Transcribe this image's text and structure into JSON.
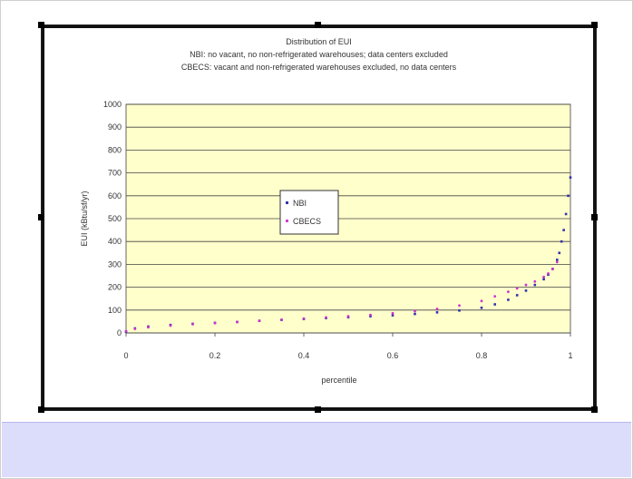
{
  "chart_data": {
    "type": "scatter",
    "title": "Distribution of EUI",
    "subtitle_lines": [
      "NBI: no vacant, no non-refrigerated warehouses; data centers excluded",
      "CBECS: vacant and non-refrigerated warehouses excluded, no data centers"
    ],
    "xlabel": "percentile",
    "ylabel": "EUI (kBtu/sf/yr)",
    "xlim": [
      0,
      1
    ],
    "ylim": [
      0,
      1000
    ],
    "x_ticks": [
      "0",
      "0.2",
      "0.4",
      "0.6",
      "0.8",
      "1"
    ],
    "y_ticks": [
      "0",
      "100",
      "200",
      "300",
      "400",
      "500",
      "600",
      "700",
      "800",
      "900",
      "1000"
    ],
    "grid": "horizontal",
    "plot_background": "#ffffcc",
    "legend_position": "center-left",
    "series": [
      {
        "name": "NBI",
        "color": "#3333aa",
        "x": [
          0.0,
          0.02,
          0.05,
          0.1,
          0.15,
          0.2,
          0.25,
          0.3,
          0.35,
          0.4,
          0.45,
          0.5,
          0.55,
          0.6,
          0.65,
          0.7,
          0.75,
          0.8,
          0.83,
          0.86,
          0.88,
          0.9,
          0.92,
          0.94,
          0.95,
          0.96,
          0.97,
          0.975,
          0.98,
          0.985,
          0.99,
          0.995,
          1.0
        ],
        "y": [
          5,
          20,
          28,
          35,
          40,
          44,
          48,
          53,
          57,
          61,
          65,
          69,
          73,
          77,
          83,
          90,
          98,
          110,
          125,
          145,
          165,
          185,
          210,
          235,
          255,
          280,
          320,
          350,
          400,
          450,
          520,
          600,
          680
        ]
      },
      {
        "name": "CBECS",
        "color": "#cc33cc",
        "x": [
          0.0,
          0.02,
          0.05,
          0.1,
          0.15,
          0.2,
          0.25,
          0.3,
          0.35,
          0.4,
          0.45,
          0.5,
          0.55,
          0.6,
          0.65,
          0.7,
          0.75,
          0.8,
          0.83,
          0.86,
          0.88,
          0.9,
          0.92,
          0.94,
          0.95,
          0.96,
          0.97
        ],
        "y": [
          8,
          18,
          25,
          32,
          38,
          43,
          48,
          53,
          58,
          63,
          68,
          73,
          79,
          86,
          95,
          105,
          120,
          140,
          160,
          180,
          195,
          210,
          225,
          245,
          260,
          280,
          310
        ]
      }
    ]
  }
}
